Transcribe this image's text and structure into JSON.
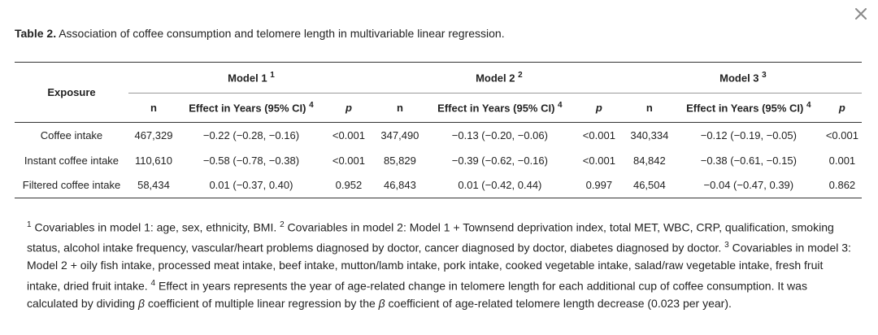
{
  "close_glyph": "×",
  "caption": {
    "label": "Table 2.",
    "text": " Association of coffee consumption and telomere length in multivariable linear regression."
  },
  "table": {
    "exposure_header": "Exposure",
    "models": [
      {
        "label": "Model 1",
        "sup": "1"
      },
      {
        "label": "Model 2",
        "sup": "2"
      },
      {
        "label": "Model 3",
        "sup": "3"
      }
    ],
    "sub_headers": {
      "n": "n",
      "effect": "Effect in Years (95% CI)",
      "effect_sup": "4",
      "p": "p"
    },
    "rows": [
      {
        "exposure": "Coffee intake",
        "cells": [
          "467,329",
          "−0.22 (−0.28, −0.16)",
          "<0.001",
          "347,490",
          "−0.13 (−0.20, −0.06)",
          "<0.001",
          "340,334",
          "−0.12 (−0.19, −0.05)",
          "<0.001"
        ]
      },
      {
        "exposure": "Instant coffee intake",
        "cells": [
          "110,610",
          "−0.58 (−0.78, −0.38)",
          "<0.001",
          "85,829",
          "−0.39 (−0.62, −0.16)",
          "<0.001",
          "84,842",
          "−0.38 (−0.61, −0.15)",
          "0.001"
        ]
      },
      {
        "exposure": "Filtered coffee intake",
        "cells": [
          "58,434",
          "0.01 (−0.37, 0.40)",
          "0.952",
          "46,843",
          "0.01 (−0.42, 0.44)",
          "0.997",
          "46,504",
          "−0.04 (−0.47, 0.39)",
          "0.862"
        ]
      }
    ]
  },
  "footnotes": {
    "fn1_sup": "1",
    "fn1": " Covariables in model 1: age, sex, ethnicity, BMI. ",
    "fn2_sup": "2",
    "fn2": " Covariables in model 2: Model 1 + Townsend deprivation index, total MET, WBC, CRP, qualification, smoking status, alcohol intake frequency, vascular/heart problems diagnosed by doctor, cancer diagnosed by doctor, diabetes diagnosed by doctor. ",
    "fn3_sup": "3",
    "fn3": " Covariables in model 3: Model 2 + oily fish intake, processed meat intake, beef intake, mutton/lamb intake, pork intake, cooked vegetable intake, salad/raw vegetable intake, fresh fruit intake, dried fruit intake. ",
    "fn4_sup": "4",
    "fn4_a": " Effect in years represents the year of age-related change in telomere length for each additional cup of coffee consumption. It was calculated by dividing ",
    "beta1": "β",
    "fn4_b": " coefficient of multiple linear regression by the ",
    "beta2": "β",
    "fn4_c": " coefficient of age-related telomere length decrease (0.023 per year)."
  }
}
